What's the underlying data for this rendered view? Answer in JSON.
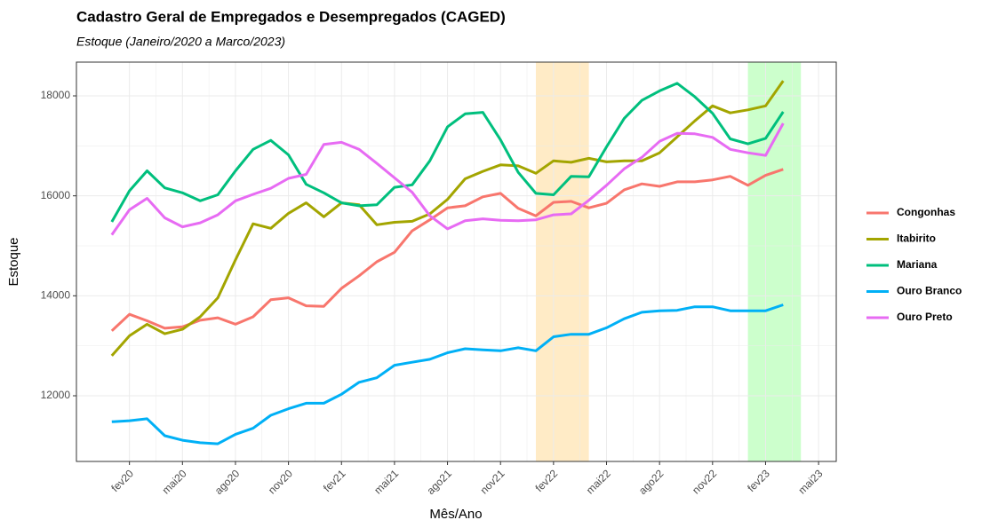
{
  "chart_data": {
    "type": "line",
    "title": "Cadastro Geral de Empregados e Desempregados (CAGED)",
    "subtitle": "Estoque (Janeiro/2020 a Marco/2023)",
    "x_label": "Mês/Ano",
    "y_label": "Estoque",
    "x": [
      "2020-01",
      "2020-02",
      "2020-03",
      "2020-04",
      "2020-05",
      "2020-06",
      "2020-07",
      "2020-08",
      "2020-09",
      "2020-10",
      "2020-11",
      "2020-12",
      "2021-01",
      "2021-02",
      "2021-03",
      "2021-04",
      "2021-05",
      "2021-06",
      "2021-07",
      "2021-08",
      "2021-09",
      "2021-10",
      "2021-11",
      "2021-12",
      "2022-01",
      "2022-02",
      "2022-03",
      "2022-04",
      "2022-05",
      "2022-06",
      "2022-07",
      "2022-08",
      "2022-09",
      "2022-10",
      "2022-11",
      "2022-12",
      "2023-01",
      "2023-02",
      "2023-03"
    ],
    "series": [
      {
        "name": "Congonhas",
        "color": "#F8766D",
        "values": [
          13300,
          13630,
          13500,
          13350,
          13380,
          13510,
          13560,
          13430,
          13580,
          13920,
          13960,
          13800,
          13790,
          14150,
          14400,
          14680,
          14870,
          15300,
          15520,
          15760,
          15800,
          15980,
          16050,
          15750,
          15600,
          15870,
          15890,
          15760,
          15850,
          16120,
          16240,
          16190,
          16280,
          16280,
          16320,
          16390,
          16210,
          16410,
          16530
        ]
      },
      {
        "name": "Itabirito",
        "color": "#A3A500",
        "values": [
          12800,
          13200,
          13430,
          13240,
          13330,
          13580,
          13960,
          14720,
          15440,
          15350,
          15650,
          15860,
          15580,
          15860,
          15820,
          15420,
          15470,
          15490,
          15640,
          15930,
          16340,
          16490,
          16620,
          16600,
          16450,
          16700,
          16670,
          16750,
          16680,
          16700,
          16700,
          16860,
          17180,
          17500,
          17800,
          17660,
          17720,
          17800,
          18300
        ]
      },
      {
        "name": "Mariana",
        "color": "#00BF7D",
        "values": [
          15480,
          16100,
          16500,
          16160,
          16060,
          15900,
          16020,
          16500,
          16930,
          17110,
          16820,
          16230,
          16060,
          15860,
          15800,
          15820,
          16170,
          16220,
          16700,
          17380,
          17640,
          17670,
          17120,
          16470,
          16050,
          16020,
          16390,
          16380,
          16980,
          17550,
          17910,
          18100,
          18250,
          17980,
          17650,
          17140,
          17040,
          17150,
          17680
        ]
      },
      {
        "name": "Ouro Branco",
        "color": "#00B0F6",
        "values": [
          11480,
          11500,
          11540,
          11200,
          11110,
          11060,
          11040,
          11230,
          11350,
          11610,
          11740,
          11850,
          11850,
          12030,
          12270,
          12360,
          12610,
          12670,
          12730,
          12860,
          12940,
          12920,
          12900,
          12960,
          12900,
          13180,
          13230,
          13230,
          13360,
          13540,
          13670,
          13700,
          13710,
          13780,
          13780,
          13700,
          13700,
          13700,
          13820
        ]
      },
      {
        "name": "Ouro Preto",
        "color": "#E76BF3",
        "values": [
          15220,
          15720,
          15950,
          15560,
          15380,
          15460,
          15620,
          15900,
          16030,
          16150,
          16350,
          16430,
          17030,
          17070,
          16930,
          16650,
          16360,
          16070,
          15600,
          15340,
          15500,
          15540,
          15510,
          15500,
          15520,
          15620,
          15640,
          15910,
          16210,
          16540,
          16770,
          17090,
          17250,
          17240,
          17170,
          16930,
          16860,
          16810,
          17450
        ]
      }
    ],
    "bands": [
      {
        "from": "2022-01",
        "to": "2022-04",
        "color": "#FFEBC6"
      },
      {
        "from": "2023-01",
        "to": "2023-04",
        "color": "#CCFFCC"
      }
    ],
    "xlim": [
      "2019-11",
      "2023-06"
    ],
    "xticks": [
      {
        "value": "2020-02",
        "label": "fev20"
      },
      {
        "value": "2020-05",
        "label": "mai20"
      },
      {
        "value": "2020-08",
        "label": "ago20"
      },
      {
        "value": "2020-11",
        "label": "nov20"
      },
      {
        "value": "2021-02",
        "label": "fev21"
      },
      {
        "value": "2021-05",
        "label": "mai21"
      },
      {
        "value": "2021-08",
        "label": "ago21"
      },
      {
        "value": "2021-11",
        "label": "nov21"
      },
      {
        "value": "2022-02",
        "label": "fev22"
      },
      {
        "value": "2022-05",
        "label": "mai22"
      },
      {
        "value": "2022-08",
        "label": "ago22"
      },
      {
        "value": "2022-11",
        "label": "nov22"
      },
      {
        "value": "2023-02",
        "label": "fev23"
      },
      {
        "value": "2023-05",
        "label": "mai23"
      }
    ],
    "ylim": [
      10686,
      18675
    ],
    "yticks": [
      12000,
      14000,
      16000,
      18000
    ],
    "grid": true,
    "legend": "right"
  }
}
